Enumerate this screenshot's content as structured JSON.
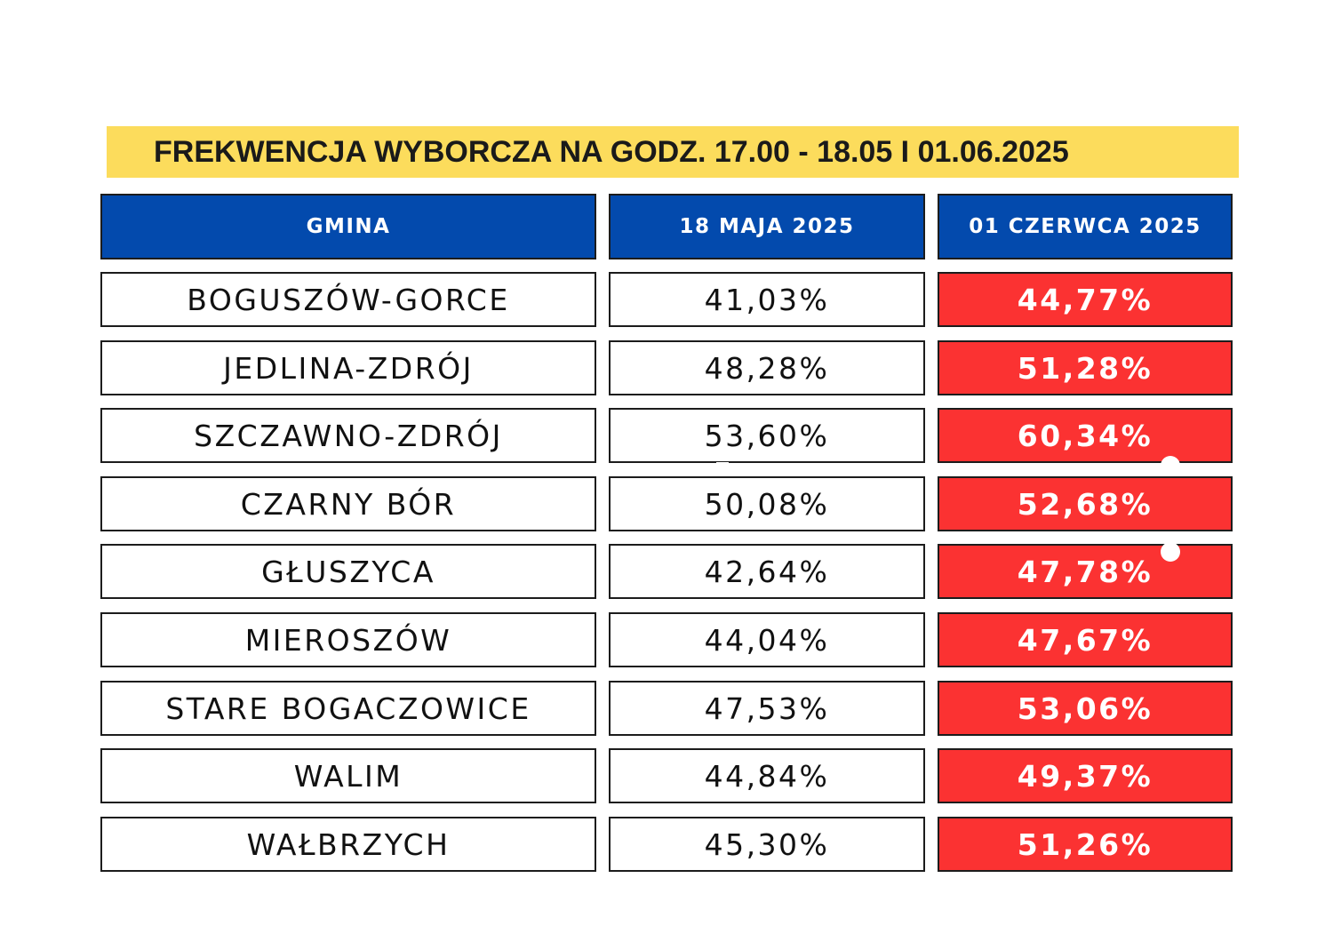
{
  "chart_data": {
    "type": "table",
    "title": "FREKWENCJA WYBORCZA NA GODZ. 17.00 - 18.05 I 01.06.2025",
    "columns": [
      "GMINA",
      "18 MAJA 2025",
      "01 CZERWCA 2025"
    ],
    "rows": [
      {
        "gmina": "BOGUSZÓW-GORCE",
        "maj": "41,03%",
        "czerwiec": "44,77%"
      },
      {
        "gmina": "JEDLINA-ZDRÓJ",
        "maj": "48,28%",
        "czerwiec": "51,28%"
      },
      {
        "gmina": "SZCZAWNO-ZDRÓJ",
        "maj": "53,60%",
        "czerwiec": "60,34%"
      },
      {
        "gmina": "CZARNY BÓR",
        "maj": "50,08%",
        "czerwiec": "52,68%"
      },
      {
        "gmina": "GŁUSZYCA",
        "maj": "42,64%",
        "czerwiec": "47,78%"
      },
      {
        "gmina": "MIEROSZÓW",
        "maj": "44,04%",
        "czerwiec": "47,67%"
      },
      {
        "gmina": "STARE BOGACZOWICE",
        "maj": "47,53%",
        "czerwiec": "53,06%"
      },
      {
        "gmina": "WALIM",
        "maj": "44,84%",
        "czerwiec": "49,37%"
      },
      {
        "gmina": "WAŁBRZYCH",
        "maj": "45,30%",
        "czerwiec": "51,26%"
      }
    ]
  },
  "colors": {
    "title_background": "#fcdc5c",
    "header_background": "#034aad",
    "highlight_background": "#fb3232",
    "border": "#1c1c1c"
  }
}
